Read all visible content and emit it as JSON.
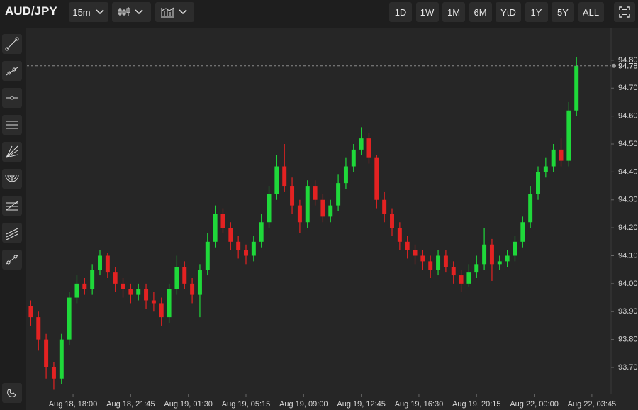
{
  "toolbar": {
    "symbol": "AUD/JPY",
    "interval": "15m",
    "ranges": [
      "1D",
      "1W",
      "1M",
      "6M",
      "YtD",
      "1Y",
      "5Y",
      "ALL"
    ]
  },
  "chart_data": {
    "type": "candlestick",
    "up_color": "#1fd83a",
    "down_color": "#e32222",
    "open": [
      93.92,
      93.88,
      93.8,
      93.7,
      93.66,
      93.8,
      93.95,
      94.0,
      93.98,
      94.05,
      94.1,
      94.04,
      94.0,
      93.98,
      93.96,
      93.98,
      93.94,
      93.93,
      93.88,
      93.98,
      94.06,
      94.0,
      93.96,
      94.05,
      94.15,
      94.25,
      94.2,
      94.15,
      94.12,
      94.1,
      94.15,
      94.22,
      94.32,
      94.42,
      94.35,
      94.28,
      94.22,
      94.35,
      94.3,
      94.24,
      94.28,
      94.36,
      94.42,
      94.48,
      94.52,
      94.45,
      94.3,
      94.25,
      94.2,
      94.15,
      94.12,
      94.1,
      94.08,
      94.05,
      94.1,
      94.06,
      94.03,
      94.0,
      94.04,
      94.07,
      94.14,
      94.07,
      94.08,
      94.1,
      94.15,
      94.22,
      94.32,
      94.4,
      94.42,
      94.48,
      94.44,
      94.62
    ],
    "high": [
      93.94,
      93.9,
      93.82,
      93.72,
      93.82,
      93.97,
      94.03,
      94.02,
      94.07,
      94.12,
      94.11,
      94.06,
      94.02,
      94.0,
      94.0,
      94.0,
      93.97,
      93.95,
      94.0,
      94.1,
      94.08,
      94.02,
      94.07,
      94.18,
      94.28,
      94.27,
      94.22,
      94.17,
      94.14,
      94.17,
      94.25,
      94.35,
      94.46,
      94.5,
      94.38,
      94.3,
      94.37,
      94.37,
      94.32,
      94.3,
      94.39,
      94.45,
      94.5,
      94.56,
      94.54,
      94.46,
      94.33,
      94.27,
      94.22,
      94.17,
      94.14,
      94.12,
      94.1,
      94.12,
      94.12,
      94.08,
      94.05,
      94.07,
      94.1,
      94.2,
      94.16,
      94.1,
      94.12,
      94.17,
      94.24,
      94.35,
      94.42,
      94.45,
      94.5,
      94.52,
      94.65,
      94.81
    ],
    "low": [
      93.85,
      93.76,
      93.66,
      93.62,
      93.64,
      93.78,
      93.93,
      93.96,
      93.96,
      94.03,
      94.02,
      93.97,
      93.95,
      93.93,
      93.94,
      93.91,
      93.9,
      93.85,
      93.86,
      93.96,
      93.98,
      93.93,
      93.88,
      94.03,
      94.13,
      94.18,
      94.12,
      94.09,
      94.07,
      94.08,
      94.13,
      94.2,
      94.3,
      94.33,
      94.25,
      94.18,
      94.2,
      94.28,
      94.22,
      94.22,
      94.26,
      94.34,
      94.4,
      94.46,
      94.43,
      94.27,
      94.22,
      94.17,
      94.12,
      94.09,
      94.07,
      94.05,
      94.02,
      94.03,
      94.04,
      94.0,
      93.97,
      93.99,
      94.02,
      94.05,
      94.01,
      94.05,
      94.06,
      94.08,
      94.13,
      94.2,
      94.3,
      94.38,
      94.4,
      94.42,
      94.42,
      94.6
    ],
    "close": [
      93.88,
      93.8,
      93.7,
      93.66,
      93.8,
      93.95,
      94.0,
      93.98,
      94.05,
      94.1,
      94.04,
      94.0,
      93.98,
      93.96,
      93.98,
      93.94,
      93.93,
      93.88,
      93.98,
      94.06,
      94.0,
      93.96,
      94.05,
      94.15,
      94.25,
      94.2,
      94.15,
      94.12,
      94.1,
      94.15,
      94.22,
      94.32,
      94.42,
      94.35,
      94.28,
      94.22,
      94.35,
      94.3,
      94.24,
      94.28,
      94.36,
      94.42,
      94.48,
      94.52,
      94.45,
      94.3,
      94.25,
      94.2,
      94.15,
      94.12,
      94.1,
      94.08,
      94.05,
      94.1,
      94.06,
      94.03,
      94.0,
      94.04,
      94.07,
      94.14,
      94.07,
      94.08,
      94.1,
      94.15,
      94.22,
      94.32,
      94.4,
      94.42,
      94.48,
      94.44,
      94.62,
      94.78
    ],
    "xlim": [
      -0.5,
      75.5
    ],
    "xticks": [
      {
        "value": 5.5,
        "label": "Aug 18, 18:00"
      },
      {
        "value": 13,
        "label": "Aug 18, 21:45"
      },
      {
        "value": 20.5,
        "label": "Aug 19, 01:30"
      },
      {
        "value": 28,
        "label": "Aug 19, 05:15"
      },
      {
        "value": 35.5,
        "label": "Aug 19, 09:00"
      },
      {
        "value": 43,
        "label": "Aug 19, 12:45"
      },
      {
        "value": 50.5,
        "label": "Aug 19, 16:30"
      },
      {
        "value": 58,
        "label": "Aug 19, 20:15"
      },
      {
        "value": 65.5,
        "label": "Aug 22, 00:00"
      },
      {
        "value": 73,
        "label": "Aug 22, 03:45"
      }
    ],
    "ylim": [
      93.606,
      94.914
    ],
    "yticks": [
      {
        "value": 93.7,
        "label": "93.70"
      },
      {
        "value": 93.8,
        "label": "93.80"
      },
      {
        "value": 93.9,
        "label": "93.90"
      },
      {
        "value": 94.0,
        "label": "94.00"
      },
      {
        "value": 94.1,
        "label": "94.10"
      },
      {
        "value": 94.2,
        "label": "94.20"
      },
      {
        "value": 94.3,
        "label": "94.30"
      },
      {
        "value": 94.4,
        "label": "94.40"
      },
      {
        "value": 94.5,
        "label": "94.50"
      },
      {
        "value": 94.6,
        "label": "94.60"
      },
      {
        "value": 94.7,
        "label": "94.70"
      },
      {
        "value": 94.8,
        "label": "94.80"
      }
    ],
    "last_price": {
      "value": 94.78,
      "label": "94.78"
    }
  }
}
